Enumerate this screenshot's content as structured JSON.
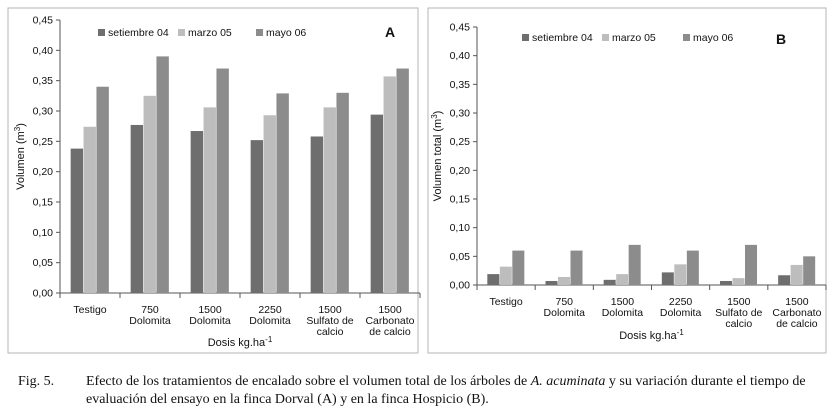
{
  "chart_data": [
    {
      "type": "bar",
      "panel_label": "A",
      "categories": [
        [
          "Testigo"
        ],
        [
          "750",
          "Dolomita"
        ],
        [
          "1500",
          "Dolomita"
        ],
        [
          "2250",
          "Dolomita"
        ],
        [
          "1500",
          "Sulfato  de",
          "calcio"
        ],
        [
          "1500",
          "Carbonato",
          "de calcio"
        ]
      ],
      "series": [
        {
          "name": "setiembre 04",
          "color": "#6e6e6e",
          "values": [
            0.238,
            0.277,
            0.267,
            0.252,
            0.258,
            0.294
          ]
        },
        {
          "name": "marzo 05",
          "color": "#bdbdbd",
          "values": [
            0.274,
            0.325,
            0.306,
            0.293,
            0.306,
            0.357
          ]
        },
        {
          "name": "mayo 06",
          "color": "#8c8c8c",
          "values": [
            0.34,
            0.39,
            0.37,
            0.329,
            0.33,
            0.37
          ]
        }
      ],
      "ylabel": "Volumen (m3)",
      "xlabel": "Dosis kg.ha-1",
      "ylim": [
        0,
        0.45
      ],
      "yticks": [
        "0,00",
        "0,05",
        "0,10",
        "0,15",
        "0,20",
        "0,25",
        "0,30",
        "0,35",
        "0,40",
        "0,45"
      ],
      "legend": "top"
    },
    {
      "type": "bar",
      "panel_label": "B",
      "categories": [
        [
          "Testigo"
        ],
        [
          "750",
          "Dolomita"
        ],
        [
          "1500",
          "Dolomita"
        ],
        [
          "2250",
          "Dolomita"
        ],
        [
          "1500",
          "Sulfato  de",
          "calcio"
        ],
        [
          "1500",
          "Carbonato",
          "de calcio"
        ]
      ],
      "series": [
        {
          "name": "setiembre 04",
          "color": "#6e6e6e",
          "values": [
            0.019,
            0.007,
            0.009,
            0.022,
            0.007,
            0.017
          ]
        },
        {
          "name": "marzo 05",
          "color": "#bdbdbd",
          "values": [
            0.032,
            0.014,
            0.019,
            0.036,
            0.012,
            0.035
          ]
        },
        {
          "name": "mayo 06",
          "color": "#8c8c8c",
          "values": [
            0.06,
            0.06,
            0.07,
            0.06,
            0.07,
            0.05
          ]
        }
      ],
      "ylabel": "Volumen total (m3)",
      "xlabel": "Dosis kg.ha-1",
      "ylim": [
        0,
        0.45
      ],
      "yticks": [
        "0,00",
        "0,05",
        "0,10",
        "0,15",
        "0,20",
        "0,25",
        "0,30",
        "0,35",
        "0,40",
        "0,45"
      ],
      "legend": "top"
    }
  ],
  "caption": {
    "label": "Fig. 5.",
    "text_before": "Efecto de los tratamientos de encalado sobre el volumen total de los árboles de ",
    "species": "A. acuminata",
    "text_after": " y su variación durante el tiempo de evaluación del ensayo en la finca Dorval (A) y en la finca Hospicio (B)."
  }
}
